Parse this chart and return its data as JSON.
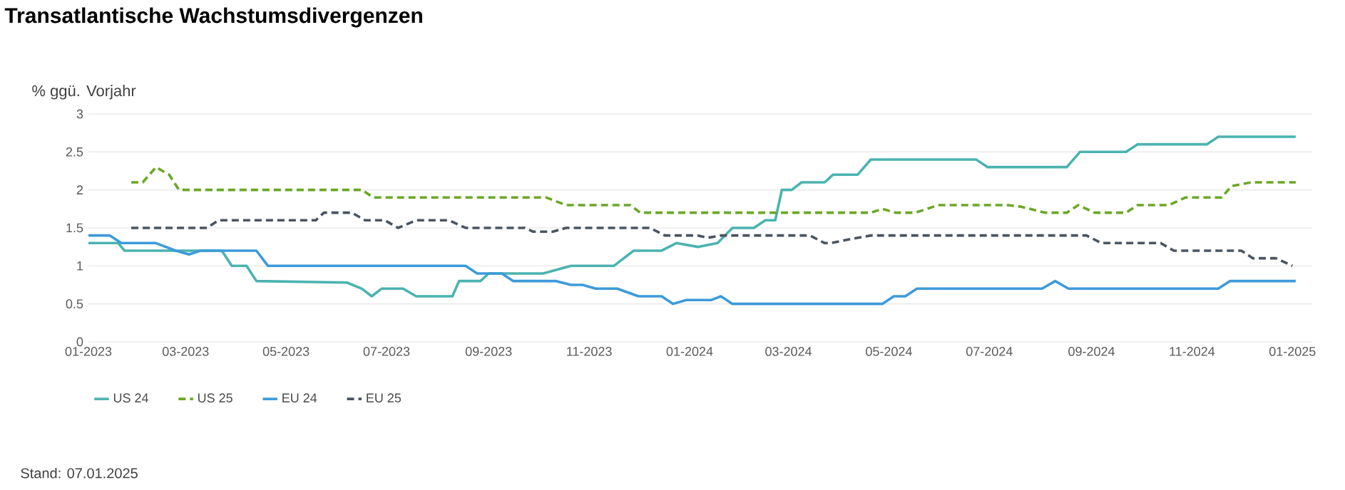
{
  "chart_data": {
    "type": "line",
    "title": "Transatlantische Wachstumsdivergenzen",
    "ylabel": "% ggü. Vorjahr",
    "annotations": [
      "Stand: 07.01.2025"
    ],
    "xlim": [
      "2023-01-01",
      "2025-01-13"
    ],
    "xticks": [
      {
        "value": "2023-01-01",
        "label": "01-2023"
      },
      {
        "value": "2023-03-01",
        "label": "03-2023"
      },
      {
        "value": "2023-05-01",
        "label": "05-2023"
      },
      {
        "value": "2023-07-01",
        "label": "07-2023"
      },
      {
        "value": "2023-09-01",
        "label": "09-2023"
      },
      {
        "value": "2023-11-01",
        "label": "11-2023"
      },
      {
        "value": "2024-01-01",
        "label": "01-2024"
      },
      {
        "value": "2024-03-01",
        "label": "03-2024"
      },
      {
        "value": "2024-05-01",
        "label": "05-2024"
      },
      {
        "value": "2024-07-01",
        "label": "07-2024"
      },
      {
        "value": "2024-09-01",
        "label": "09-2024"
      },
      {
        "value": "2024-11-01",
        "label": "11-2024"
      },
      {
        "value": "2025-01-01",
        "label": "01-2025"
      }
    ],
    "ylim": [
      0,
      3
    ],
    "yticks": [
      0,
      0.5,
      1,
      1.5,
      2,
      2.5,
      3
    ],
    "grid": "y",
    "legend": "bottom left",
    "marker": "none",
    "series": [
      {
        "name": "US 24",
        "color": "#4bb3b0",
        "line_style": "solid",
        "x": [
          "2023-01-01",
          "2023-01-19",
          "2023-01-23",
          "2023-03-23",
          "2023-03-29",
          "2023-04-07",
          "2023-04-13",
          "2023-06-07",
          "2023-06-16",
          "2023-06-22",
          "2023-06-28",
          "2023-07-11",
          "2023-07-19",
          "2023-08-10",
          "2023-08-14",
          "2023-08-27",
          "2023-09-01",
          "2023-10-04",
          "2023-10-21",
          "2023-11-16",
          "2023-11-28",
          "2023-12-15",
          "2023-12-24",
          "2024-01-06",
          "2024-01-18",
          "2024-01-27",
          "2024-02-09",
          "2024-02-16",
          "2024-02-22",
          "2024-02-26",
          "2024-03-03",
          "2024-03-09",
          "2024-03-23",
          "2024-03-28",
          "2024-04-12",
          "2024-04-20",
          "2024-06-23",
          "2024-06-30",
          "2024-08-17",
          "2024-08-25",
          "2024-09-22",
          "2024-09-29",
          "2024-11-10",
          "2024-11-17",
          "2025-01-03"
        ],
        "values": [
          1.3,
          1.3,
          1.2,
          1.2,
          1.0,
          1.0,
          0.8,
          0.78,
          0.7,
          0.6,
          0.7,
          0.7,
          0.6,
          0.6,
          0.8,
          0.8,
          0.9,
          0.9,
          1.0,
          1.0,
          1.2,
          1.2,
          1.3,
          1.25,
          1.3,
          1.5,
          1.5,
          1.6,
          1.6,
          2.0,
          2.0,
          2.1,
          2.1,
          2.2,
          2.2,
          2.4,
          2.4,
          2.3,
          2.3,
          2.5,
          2.5,
          2.6,
          2.6,
          2.7,
          2.7
        ]
      },
      {
        "name": "US 25",
        "color": "#6aa826",
        "line_style": "dashed",
        "x": [
          "2023-01-27",
          "2023-02-03",
          "2023-02-11",
          "2023-02-19",
          "2023-02-25",
          "2023-06-16",
          "2023-06-23",
          "2023-10-06",
          "2023-10-18",
          "2023-11-26",
          "2023-12-02",
          "2024-04-20",
          "2024-04-27",
          "2024-05-05",
          "2024-05-17",
          "2024-05-31",
          "2024-07-12",
          "2024-07-20",
          "2024-08-04",
          "2024-08-17",
          "2024-08-24",
          "2024-09-03",
          "2024-09-22",
          "2024-09-29",
          "2024-10-18",
          "2024-10-28",
          "2024-11-19",
          "2024-11-25",
          "2024-12-07",
          "2025-01-03"
        ],
        "values": [
          2.1,
          2.1,
          2.3,
          2.2,
          2.0,
          2.0,
          1.9,
          1.9,
          1.8,
          1.8,
          1.7,
          1.7,
          1.75,
          1.7,
          1.7,
          1.8,
          1.8,
          1.78,
          1.7,
          1.7,
          1.8,
          1.7,
          1.7,
          1.8,
          1.8,
          1.9,
          1.9,
          2.05,
          2.1,
          2.1
        ]
      },
      {
        "name": "EU 24",
        "color": "#3d9ad9",
        "line_style": "solid",
        "x": [
          "2023-01-01",
          "2023-01-14",
          "2023-01-21",
          "2023-02-11",
          "2023-02-23",
          "2023-03-03",
          "2023-03-10",
          "2023-04-13",
          "2023-04-20",
          "2023-08-18",
          "2023-08-25",
          "2023-09-09",
          "2023-09-16",
          "2023-10-12",
          "2023-10-21",
          "2023-10-28",
          "2023-11-05",
          "2023-11-18",
          "2023-12-01",
          "2023-12-15",
          "2023-12-22",
          "2023-12-30",
          "2024-01-14",
          "2024-01-20",
          "2024-01-27",
          "2024-04-27",
          "2024-05-04",
          "2024-05-11",
          "2024-05-18",
          "2024-08-02",
          "2024-08-10",
          "2024-08-18",
          "2024-11-17",
          "2024-11-24",
          "2025-01-03"
        ],
        "values": [
          1.4,
          1.4,
          1.3,
          1.3,
          1.2,
          1.15,
          1.2,
          1.2,
          1.0,
          1.0,
          0.9,
          0.9,
          0.8,
          0.8,
          0.75,
          0.75,
          0.7,
          0.7,
          0.6,
          0.6,
          0.5,
          0.55,
          0.55,
          0.6,
          0.5,
          0.5,
          0.6,
          0.6,
          0.7,
          0.7,
          0.8,
          0.7,
          0.7,
          0.8,
          0.8
        ]
      },
      {
        "name": "EU 25",
        "color": "#4a5563",
        "line_style": "dashed",
        "x": [
          "2023-01-27",
          "2023-03-14",
          "2023-03-21",
          "2023-05-19",
          "2023-05-24",
          "2023-06-10",
          "2023-06-18",
          "2023-06-30",
          "2023-07-08",
          "2023-07-19",
          "2023-08-08",
          "2023-08-18",
          "2023-09-23",
          "2023-09-28",
          "2023-10-10",
          "2023-10-18",
          "2023-12-08",
          "2023-12-17",
          "2024-01-06",
          "2024-01-12",
          "2024-01-20",
          "2024-03-14",
          "2024-03-23",
          "2024-03-27",
          "2024-04-07",
          "2024-04-20",
          "2024-08-29",
          "2024-09-07",
          "2024-10-13",
          "2024-10-21",
          "2024-12-01",
          "2024-12-08",
          "2024-12-22",
          "2025-01-01"
        ],
        "values": [
          1.5,
          1.5,
          1.6,
          1.6,
          1.7,
          1.7,
          1.6,
          1.6,
          1.5,
          1.6,
          1.6,
          1.5,
          1.5,
          1.45,
          1.45,
          1.5,
          1.5,
          1.4,
          1.4,
          1.37,
          1.4,
          1.4,
          1.3,
          1.3,
          1.35,
          1.4,
          1.4,
          1.3,
          1.3,
          1.2,
          1.2,
          1.1,
          1.1,
          1.0
        ]
      }
    ]
  }
}
